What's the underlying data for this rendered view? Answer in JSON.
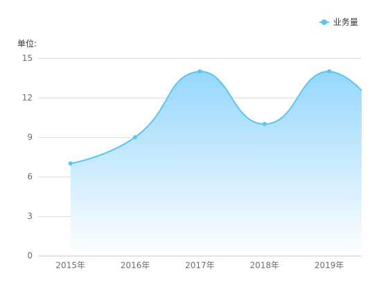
{
  "chart_data": {
    "type": "area",
    "ylabel": "单位:",
    "categories": [
      "2015年",
      "2016年",
      "2017年",
      "2018年",
      "2019年"
    ],
    "series": [
      {
        "name": "业务量",
        "values": [
          7,
          9,
          14,
          10,
          14
        ],
        "color": "#5ac5f4",
        "smooth": true
      }
    ],
    "ylim": [
      0,
      15
    ],
    "yticks": [
      0,
      3,
      6,
      9,
      12,
      15
    ],
    "grid": true,
    "legend": {
      "position": "top-right"
    },
    "area_gradient": [
      "#94d7fc",
      "#ffffff"
    ]
  }
}
